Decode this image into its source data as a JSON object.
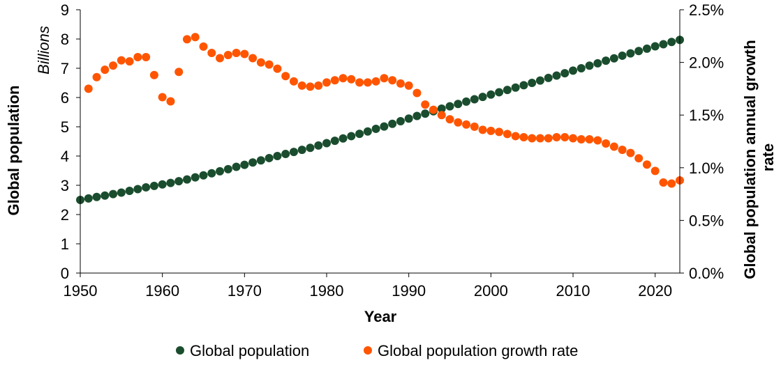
{
  "chart_data": {
    "type": "scatter",
    "xlabel": "Year",
    "ylabel_left": "Global population",
    "ylabel_right": "Global population annual growth rate",
    "unit_left": "Billions",
    "x_ticks": [
      "1950",
      "1960",
      "1970",
      "1980",
      "1990",
      "2000",
      "2010",
      "2020"
    ],
    "xlim": [
      1950,
      2023
    ],
    "y_left_ticks": [
      "0",
      "1",
      "2",
      "3",
      "4",
      "5",
      "6",
      "7",
      "8",
      "9"
    ],
    "ylim_left": [
      0,
      9
    ],
    "y_right_ticks": [
      "0.0%",
      "0.5%",
      "1.0%",
      "1.5%",
      "2.0%",
      "2.5%"
    ],
    "ylim_right": [
      0,
      2.5
    ],
    "grid": false,
    "legend_position": "bottom",
    "colors": {
      "population": "#1a4d2e",
      "growth": "#ff5500"
    },
    "series": [
      {
        "name": "Global population",
        "axis": "left",
        "x": [
          1950,
          1951,
          1952,
          1953,
          1954,
          1955,
          1956,
          1957,
          1958,
          1959,
          1960,
          1961,
          1962,
          1963,
          1964,
          1965,
          1966,
          1967,
          1968,
          1969,
          1970,
          1971,
          1972,
          1973,
          1974,
          1975,
          1976,
          1977,
          1978,
          1979,
          1980,
          1981,
          1982,
          1983,
          1984,
          1985,
          1986,
          1987,
          1988,
          1989,
          1990,
          1991,
          1992,
          1993,
          1994,
          1995,
          1996,
          1997,
          1998,
          1999,
          2000,
          2001,
          2002,
          2003,
          2004,
          2005,
          2006,
          2007,
          2008,
          2009,
          2010,
          2011,
          2012,
          2013,
          2014,
          2015,
          2016,
          2017,
          2018,
          2019,
          2020,
          2021,
          2022,
          2023
        ],
        "values": [
          2.5,
          2.55,
          2.6,
          2.65,
          2.7,
          2.75,
          2.81,
          2.87,
          2.93,
          2.98,
          3.03,
          3.08,
          3.14,
          3.2,
          3.27,
          3.34,
          3.41,
          3.48,
          3.55,
          3.63,
          3.7,
          3.78,
          3.85,
          3.93,
          4.0,
          4.07,
          4.14,
          4.21,
          4.28,
          4.36,
          4.44,
          4.52,
          4.6,
          4.68,
          4.76,
          4.84,
          4.93,
          5.01,
          5.1,
          5.19,
          5.28,
          5.37,
          5.45,
          5.53,
          5.62,
          5.7,
          5.78,
          5.86,
          5.94,
          6.02,
          6.1,
          6.18,
          6.26,
          6.34,
          6.42,
          6.5,
          6.58,
          6.67,
          6.75,
          6.83,
          6.92,
          7.0,
          7.09,
          7.17,
          7.26,
          7.34,
          7.43,
          7.51,
          7.59,
          7.67,
          7.75,
          7.82,
          7.9,
          7.97
        ]
      },
      {
        "name": "Global population growth rate",
        "axis": "right",
        "x": [
          1951,
          1952,
          1953,
          1954,
          1955,
          1956,
          1957,
          1958,
          1959,
          1960,
          1961,
          1962,
          1963,
          1964,
          1965,
          1966,
          1967,
          1968,
          1969,
          1970,
          1971,
          1972,
          1973,
          1974,
          1975,
          1976,
          1977,
          1978,
          1979,
          1980,
          1981,
          1982,
          1983,
          1984,
          1985,
          1986,
          1987,
          1988,
          1989,
          1990,
          1991,
          1992,
          1993,
          1994,
          1995,
          1996,
          1997,
          1998,
          1999,
          2000,
          2001,
          2002,
          2003,
          2004,
          2005,
          2006,
          2007,
          2008,
          2009,
          2010,
          2011,
          2012,
          2013,
          2014,
          2015,
          2016,
          2017,
          2018,
          2019,
          2020,
          2021,
          2022,
          2023
        ],
        "values": [
          1.75,
          1.86,
          1.93,
          1.97,
          2.02,
          2.01,
          2.05,
          2.05,
          1.88,
          1.67,
          1.63,
          1.91,
          2.22,
          2.24,
          2.15,
          2.09,
          2.04,
          2.07,
          2.09,
          2.08,
          2.04,
          2.0,
          1.98,
          1.94,
          1.87,
          1.82,
          1.78,
          1.77,
          1.78,
          1.81,
          1.83,
          1.85,
          1.84,
          1.81,
          1.81,
          1.82,
          1.85,
          1.83,
          1.8,
          1.78,
          1.71,
          1.6,
          1.55,
          1.5,
          1.46,
          1.43,
          1.41,
          1.39,
          1.36,
          1.35,
          1.34,
          1.32,
          1.3,
          1.29,
          1.28,
          1.28,
          1.28,
          1.29,
          1.29,
          1.28,
          1.27,
          1.27,
          1.26,
          1.23,
          1.2,
          1.17,
          1.14,
          1.09,
          1.03,
          0.97,
          0.86,
          0.85,
          0.88
        ]
      }
    ]
  },
  "legend": {
    "population_label": "Global population",
    "growth_label": "Global population growth rate"
  }
}
